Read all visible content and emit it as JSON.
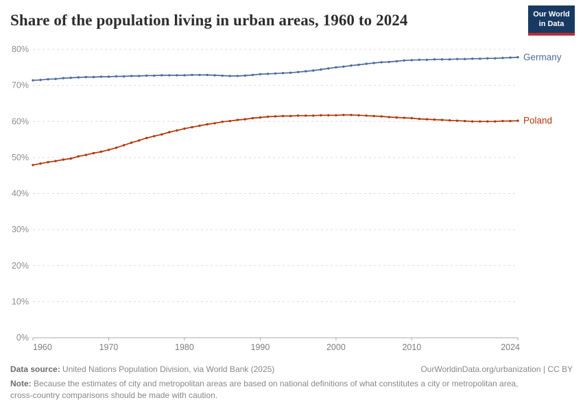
{
  "header": {
    "title": "Share of the population living in urban areas, 1960 to 2024",
    "logo": {
      "line1": "Our World",
      "line2": "in Data"
    }
  },
  "colors": {
    "germany_line": "#4C6A9C",
    "poland_line": "#B13507",
    "gridline": "#dcdcdc",
    "axis": "#a8a8a8",
    "y_tick_label": "#8c8c8c",
    "x_tick_label": "#7d7d7d",
    "title_text": "#2d2d2d",
    "footer_text": "#878787",
    "logo_bg": "#183a62",
    "logo_stripe": "#bb2e34",
    "logo_text": "#ffffff"
  },
  "chart_data": {
    "type": "line",
    "title": "Share of the population living in urban areas, 1960 to 2024",
    "xlabel": "",
    "ylabel": "",
    "x_range": [
      1960,
      2024
    ],
    "y_range": [
      0,
      80
    ],
    "grid": "horizontal-dashed",
    "legend_position": "line-end-labels",
    "y_ticks": [
      {
        "value": 0,
        "label": "0%"
      },
      {
        "value": 10,
        "label": "10%"
      },
      {
        "value": 20,
        "label": "20%"
      },
      {
        "value": 30,
        "label": "30%"
      },
      {
        "value": 40,
        "label": "40%"
      },
      {
        "value": 50,
        "label": "50%"
      },
      {
        "value": 60,
        "label": "60%"
      },
      {
        "value": 70,
        "label": "70%"
      },
      {
        "value": 80,
        "label": "80%"
      }
    ],
    "x_ticks": [
      {
        "value": 1960,
        "label": "1960"
      },
      {
        "value": 1970,
        "label": "1970"
      },
      {
        "value": 1980,
        "label": "1980"
      },
      {
        "value": 1990,
        "label": "1990"
      },
      {
        "value": 2000,
        "label": "2000"
      },
      {
        "value": 2010,
        "label": "2010"
      },
      {
        "value": 2024,
        "label": "2024"
      }
    ],
    "x": [
      1960,
      1961,
      1962,
      1963,
      1964,
      1965,
      1966,
      1967,
      1968,
      1969,
      1970,
      1971,
      1972,
      1973,
      1974,
      1975,
      1976,
      1977,
      1978,
      1979,
      1980,
      1981,
      1982,
      1983,
      1984,
      1985,
      1986,
      1987,
      1988,
      1989,
      1990,
      1991,
      1992,
      1993,
      1994,
      1995,
      1996,
      1997,
      1998,
      1999,
      2000,
      2001,
      2002,
      2003,
      2004,
      2005,
      2006,
      2007,
      2008,
      2009,
      2010,
      2011,
      2012,
      2013,
      2014,
      2015,
      2016,
      2017,
      2018,
      2019,
      2020,
      2021,
      2022,
      2023,
      2024
    ],
    "series": [
      {
        "name": "Germany",
        "color": "#4C6A9C",
        "values": [
          71.4,
          71.5,
          71.7,
          71.8,
          72.0,
          72.1,
          72.2,
          72.3,
          72.3,
          72.4,
          72.4,
          72.5,
          72.5,
          72.6,
          72.6,
          72.7,
          72.7,
          72.8,
          72.8,
          72.8,
          72.8,
          72.9,
          72.9,
          72.9,
          72.8,
          72.7,
          72.6,
          72.6,
          72.7,
          72.9,
          73.1,
          73.2,
          73.3,
          73.4,
          73.5,
          73.7,
          73.9,
          74.1,
          74.4,
          74.7,
          75.0,
          75.2,
          75.5,
          75.7,
          76.0,
          76.2,
          76.4,
          76.5,
          76.7,
          76.9,
          77.0,
          77.1,
          77.1,
          77.2,
          77.2,
          77.2,
          77.3,
          77.3,
          77.4,
          77.4,
          77.5,
          77.5,
          77.6,
          77.7,
          77.8
        ]
      },
      {
        "name": "Poland",
        "color": "#B13507",
        "values": [
          47.9,
          48.3,
          48.7,
          49.0,
          49.4,
          49.7,
          50.3,
          50.7,
          51.2,
          51.6,
          52.1,
          52.7,
          53.4,
          54.1,
          54.7,
          55.4,
          55.9,
          56.4,
          57.0,
          57.5,
          58.0,
          58.4,
          58.8,
          59.2,
          59.5,
          59.9,
          60.1,
          60.4,
          60.6,
          60.9,
          61.1,
          61.3,
          61.4,
          61.5,
          61.5,
          61.6,
          61.6,
          61.6,
          61.7,
          61.7,
          61.7,
          61.8,
          61.8,
          61.7,
          61.6,
          61.5,
          61.4,
          61.2,
          61.1,
          61.0,
          60.9,
          60.7,
          60.6,
          60.5,
          60.4,
          60.3,
          60.2,
          60.1,
          60.0,
          60.0,
          60.0,
          60.0,
          60.1,
          60.1,
          60.2
        ]
      }
    ]
  },
  "footer": {
    "source_label": "Data source:",
    "source_text": " United Nations Population Division, via World Bank (2025)",
    "link_text": "OurWorldinData.org/urbanization | CC BY",
    "note_label": "Note:",
    "note_text": " Because the estimates of city and metropolitan areas are based on national definitions of what constitutes a city or metropolitan area, cross-country comparisons should be made with caution."
  }
}
